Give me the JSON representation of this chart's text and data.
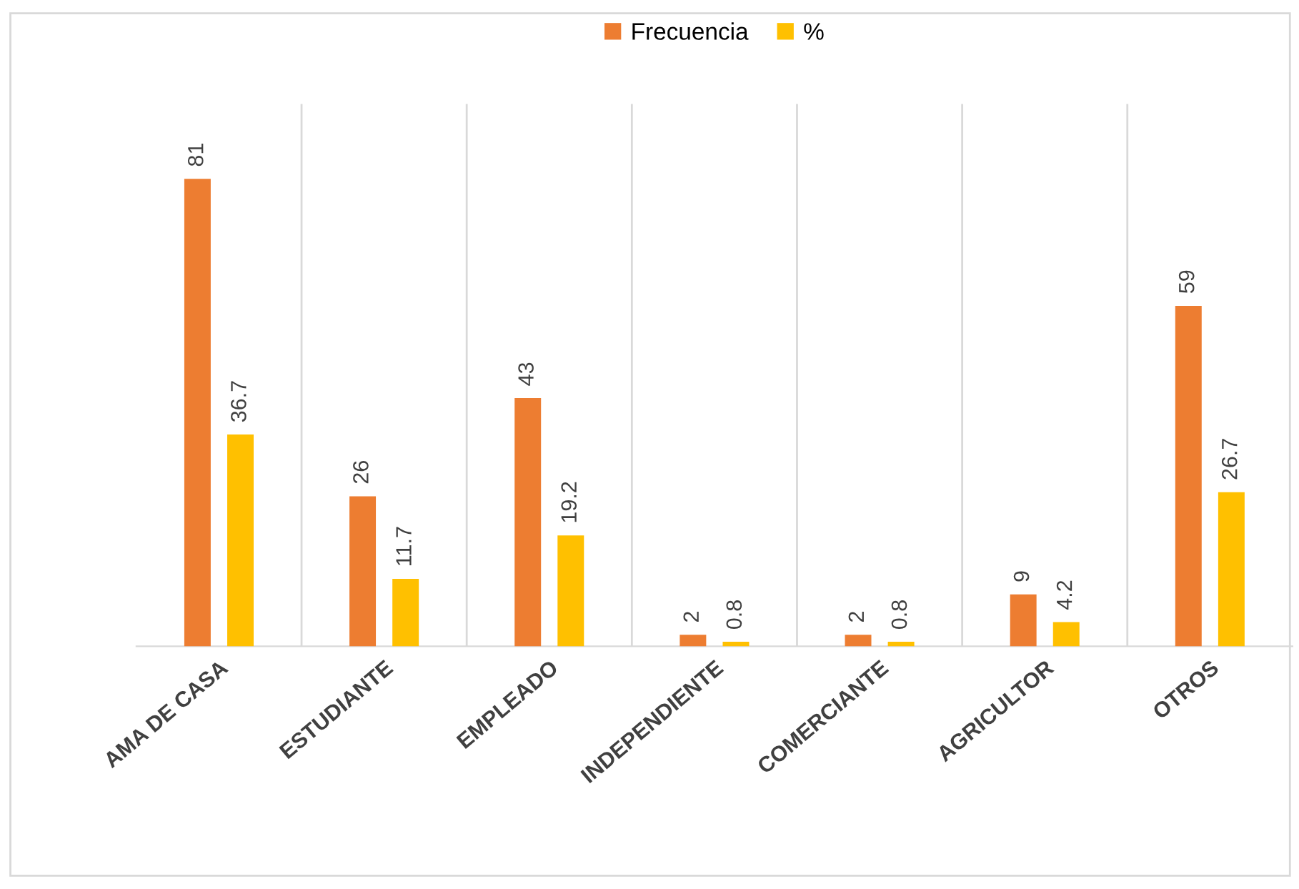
{
  "chart_data": {
    "type": "bar",
    "categories": [
      "AMA DE CASA",
      "ESTUDIANTE",
      "EMPLEADO",
      "INDEPENDIENTE",
      "COMERCIANTE",
      "AGRICULTOR",
      "OTROS"
    ],
    "series": [
      {
        "name": "Frecuencia",
        "color": "#ed7d31",
        "values": [
          81,
          26,
          43,
          2,
          2,
          9,
          59
        ]
      },
      {
        "name": "%",
        "color": "#ffc000",
        "values": [
          36.7,
          11.7,
          19.2,
          0.8,
          0.8,
          4.2,
          26.7
        ]
      }
    ],
    "data_labels": true,
    "grid": "x",
    "legend": "top"
  }
}
